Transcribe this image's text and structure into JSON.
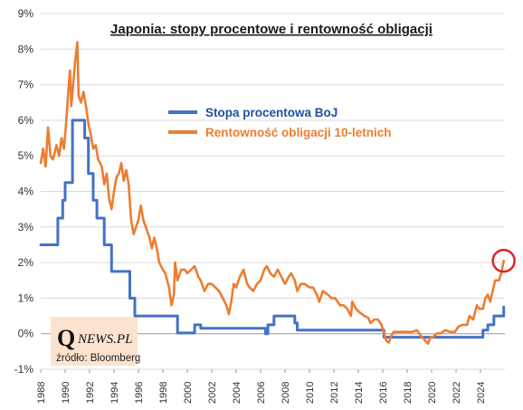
{
  "chart_data": {
    "type": "line",
    "title": "Japonia: stopy procentowe i rentowność obligacji",
    "xlim": [
      1988,
      2026
    ],
    "ylim": [
      -1,
      9
    ],
    "x_ticks": [
      "1988",
      "1990",
      "1992",
      "1994",
      "1996",
      "1998",
      "2000",
      "2002",
      "2004",
      "2006",
      "2008",
      "2010",
      "2012",
      "2014",
      "2016",
      "2018",
      "2020",
      "2022",
      "2024"
    ],
    "y_ticks": [
      "9%",
      "8%",
      "7%",
      "6%",
      "5%",
      "4%",
      "3%",
      "2%",
      "1%",
      "0%",
      "-1%"
    ],
    "grid": "horizontal",
    "legend_position": "center",
    "series": [
      {
        "name": "Stopa procentowa BoJ",
        "color": "#4472c4",
        "style": "step",
        "points": [
          [
            1988.0,
            2.5
          ],
          [
            1989.4,
            2.5
          ],
          [
            1989.4,
            3.25
          ],
          [
            1989.8,
            3.25
          ],
          [
            1989.8,
            3.75
          ],
          [
            1990.0,
            3.75
          ],
          [
            1990.0,
            4.25
          ],
          [
            1990.6,
            4.25
          ],
          [
            1990.6,
            6.0
          ],
          [
            1991.6,
            6.0
          ],
          [
            1991.6,
            5.5
          ],
          [
            1991.9,
            5.5
          ],
          [
            1991.9,
            4.5
          ],
          [
            1992.3,
            4.5
          ],
          [
            1992.3,
            3.75
          ],
          [
            1992.6,
            3.75
          ],
          [
            1992.6,
            3.25
          ],
          [
            1993.2,
            3.25
          ],
          [
            1993.2,
            2.5
          ],
          [
            1993.8,
            2.5
          ],
          [
            1993.8,
            1.75
          ],
          [
            1995.3,
            1.75
          ],
          [
            1995.3,
            1.0
          ],
          [
            1995.7,
            1.0
          ],
          [
            1995.7,
            0.5
          ],
          [
            1999.2,
            0.5
          ],
          [
            1999.2,
            0.02
          ],
          [
            2000.6,
            0.02
          ],
          [
            2000.6,
            0.25
          ],
          [
            2001.1,
            0.25
          ],
          [
            2001.1,
            0.15
          ],
          [
            2006.4,
            0.15
          ],
          [
            2006.4,
            0.0
          ],
          [
            2006.6,
            0.0
          ],
          [
            2006.6,
            0.25
          ],
          [
            2007.1,
            0.25
          ],
          [
            2007.1,
            0.5
          ],
          [
            2008.8,
            0.5
          ],
          [
            2008.8,
            0.3
          ],
          [
            2009.0,
            0.3
          ],
          [
            2009.0,
            0.1
          ],
          [
            2016.1,
            0.1
          ],
          [
            2016.1,
            -0.1
          ],
          [
            2024.2,
            -0.1
          ],
          [
            2024.2,
            0.1
          ],
          [
            2024.6,
            0.1
          ],
          [
            2024.6,
            0.25
          ],
          [
            2025.1,
            0.25
          ],
          [
            2025.1,
            0.5
          ],
          [
            2025.9,
            0.5
          ],
          [
            2025.9,
            0.75
          ]
        ]
      },
      {
        "name": "Rentowność obligacji 10-letnich",
        "color": "#ed7d31",
        "points": [
          [
            1988.0,
            4.8
          ],
          [
            1988.2,
            5.2
          ],
          [
            1988.4,
            4.7
          ],
          [
            1988.6,
            5.8
          ],
          [
            1988.8,
            5.0
          ],
          [
            1989.0,
            4.9
          ],
          [
            1989.3,
            5.3
          ],
          [
            1989.5,
            5.0
          ],
          [
            1989.7,
            5.5
          ],
          [
            1989.9,
            5.2
          ],
          [
            1990.1,
            6.0
          ],
          [
            1990.3,
            7.0
          ],
          [
            1990.4,
            7.4
          ],
          [
            1990.5,
            6.4
          ],
          [
            1990.7,
            7.2
          ],
          [
            1990.8,
            7.6
          ],
          [
            1991.0,
            8.2
          ],
          [
            1991.1,
            6.7
          ],
          [
            1991.3,
            6.5
          ],
          [
            1991.5,
            6.8
          ],
          [
            1991.7,
            6.4
          ],
          [
            1991.9,
            5.9
          ],
          [
            1992.1,
            5.6
          ],
          [
            1992.3,
            5.2
          ],
          [
            1992.5,
            5.3
          ],
          [
            1992.7,
            4.9
          ],
          [
            1993.0,
            4.7
          ],
          [
            1993.2,
            4.2
          ],
          [
            1993.4,
            4.5
          ],
          [
            1993.6,
            3.8
          ],
          [
            1993.8,
            3.5
          ],
          [
            1994.0,
            4.0
          ],
          [
            1994.2,
            4.4
          ],
          [
            1994.4,
            4.5
          ],
          [
            1994.6,
            4.8
          ],
          [
            1994.8,
            4.3
          ],
          [
            1995.0,
            4.6
          ],
          [
            1995.2,
            4.2
          ],
          [
            1995.4,
            3.2
          ],
          [
            1995.6,
            2.8
          ],
          [
            1995.8,
            3.0
          ],
          [
            1996.0,
            3.2
          ],
          [
            1996.2,
            3.6
          ],
          [
            1996.4,
            3.2
          ],
          [
            1996.6,
            3.0
          ],
          [
            1996.9,
            2.7
          ],
          [
            1997.1,
            2.4
          ],
          [
            1997.3,
            2.7
          ],
          [
            1997.5,
            2.4
          ],
          [
            1997.7,
            2.0
          ],
          [
            1998.0,
            1.8
          ],
          [
            1998.2,
            1.7
          ],
          [
            1998.5,
            1.3
          ],
          [
            1998.7,
            0.8
          ],
          [
            1998.9,
            1.1
          ],
          [
            1999.0,
            2.0
          ],
          [
            1999.2,
            1.5
          ],
          [
            1999.5,
            1.8
          ],
          [
            1999.8,
            1.8
          ],
          [
            2000.0,
            1.7
          ],
          [
            2000.3,
            1.8
          ],
          [
            2000.6,
            1.9
          ],
          [
            2000.9,
            1.6
          ],
          [
            2001.1,
            1.5
          ],
          [
            2001.4,
            1.2
          ],
          [
            2001.7,
            1.4
          ],
          [
            2002.0,
            1.4
          ],
          [
            2002.3,
            1.3
          ],
          [
            2002.6,
            1.2
          ],
          [
            2002.9,
            1.0
          ],
          [
            2003.2,
            0.8
          ],
          [
            2003.4,
            0.55
          ],
          [
            2003.6,
            0.9
          ],
          [
            2003.8,
            1.4
          ],
          [
            2004.0,
            1.3
          ],
          [
            2004.3,
            1.6
          ],
          [
            2004.6,
            1.8
          ],
          [
            2004.9,
            1.4
          ],
          [
            2005.1,
            1.3
          ],
          [
            2005.4,
            1.2
          ],
          [
            2005.7,
            1.4
          ],
          [
            2006.0,
            1.5
          ],
          [
            2006.3,
            1.8
          ],
          [
            2006.5,
            1.9
          ],
          [
            2006.8,
            1.7
          ],
          [
            2007.1,
            1.6
          ],
          [
            2007.4,
            1.8
          ],
          [
            2007.7,
            1.6
          ],
          [
            2008.0,
            1.4
          ],
          [
            2008.3,
            1.6
          ],
          [
            2008.5,
            1.7
          ],
          [
            2008.8,
            1.5
          ],
          [
            2009.0,
            1.2
          ],
          [
            2009.3,
            1.4
          ],
          [
            2009.6,
            1.4
          ],
          [
            2010.0,
            1.3
          ],
          [
            2010.3,
            1.3
          ],
          [
            2010.6,
            1.1
          ],
          [
            2010.8,
            0.9
          ],
          [
            2011.1,
            1.2
          ],
          [
            2011.5,
            1.1
          ],
          [
            2011.8,
            1.0
          ],
          [
            2012.1,
            1.0
          ],
          [
            2012.5,
            0.8
          ],
          [
            2012.8,
            0.8
          ],
          [
            2013.1,
            0.7
          ],
          [
            2013.4,
            0.5
          ],
          [
            2013.5,
            0.9
          ],
          [
            2013.8,
            0.7
          ],
          [
            2014.1,
            0.6
          ],
          [
            2014.5,
            0.5
          ],
          [
            2014.8,
            0.45
          ],
          [
            2015.0,
            0.3
          ],
          [
            2015.3,
            0.4
          ],
          [
            2015.6,
            0.4
          ],
          [
            2015.9,
            0.25
          ],
          [
            2016.1,
            0.0
          ],
          [
            2016.3,
            -0.2
          ],
          [
            2016.5,
            -0.25
          ],
          [
            2016.7,
            -0.05
          ],
          [
            2016.9,
            0.05
          ],
          [
            2017.2,
            0.05
          ],
          [
            2017.6,
            0.05
          ],
          [
            2018.0,
            0.05
          ],
          [
            2018.4,
            0.05
          ],
          [
            2018.8,
            0.1
          ],
          [
            2019.1,
            -0.05
          ],
          [
            2019.5,
            -0.2
          ],
          [
            2019.7,
            -0.28
          ],
          [
            2019.9,
            -0.1
          ],
          [
            2020.1,
            -0.1
          ],
          [
            2020.4,
            0.0
          ],
          [
            2020.8,
            0.02
          ],
          [
            2021.1,
            0.1
          ],
          [
            2021.5,
            0.05
          ],
          [
            2021.9,
            0.05
          ],
          [
            2022.2,
            0.2
          ],
          [
            2022.5,
            0.25
          ],
          [
            2022.9,
            0.25
          ],
          [
            2023.1,
            0.5
          ],
          [
            2023.4,
            0.4
          ],
          [
            2023.7,
            0.8
          ],
          [
            2023.9,
            0.7
          ],
          [
            2024.2,
            0.7
          ],
          [
            2024.4,
            1.0
          ],
          [
            2024.6,
            1.1
          ],
          [
            2024.8,
            0.9
          ],
          [
            2025.0,
            1.2
          ],
          [
            2025.2,
            1.5
          ],
          [
            2025.5,
            1.5
          ],
          [
            2025.7,
            1.7
          ],
          [
            2025.9,
            2.05
          ]
        ]
      }
    ],
    "highlight": {
      "x": 2025.9,
      "y": 2.05,
      "color": "#e32222"
    },
    "source": "źródło: Bloomberg",
    "logo": {
      "q": "Q",
      "text": "NEWS.PL"
    }
  }
}
